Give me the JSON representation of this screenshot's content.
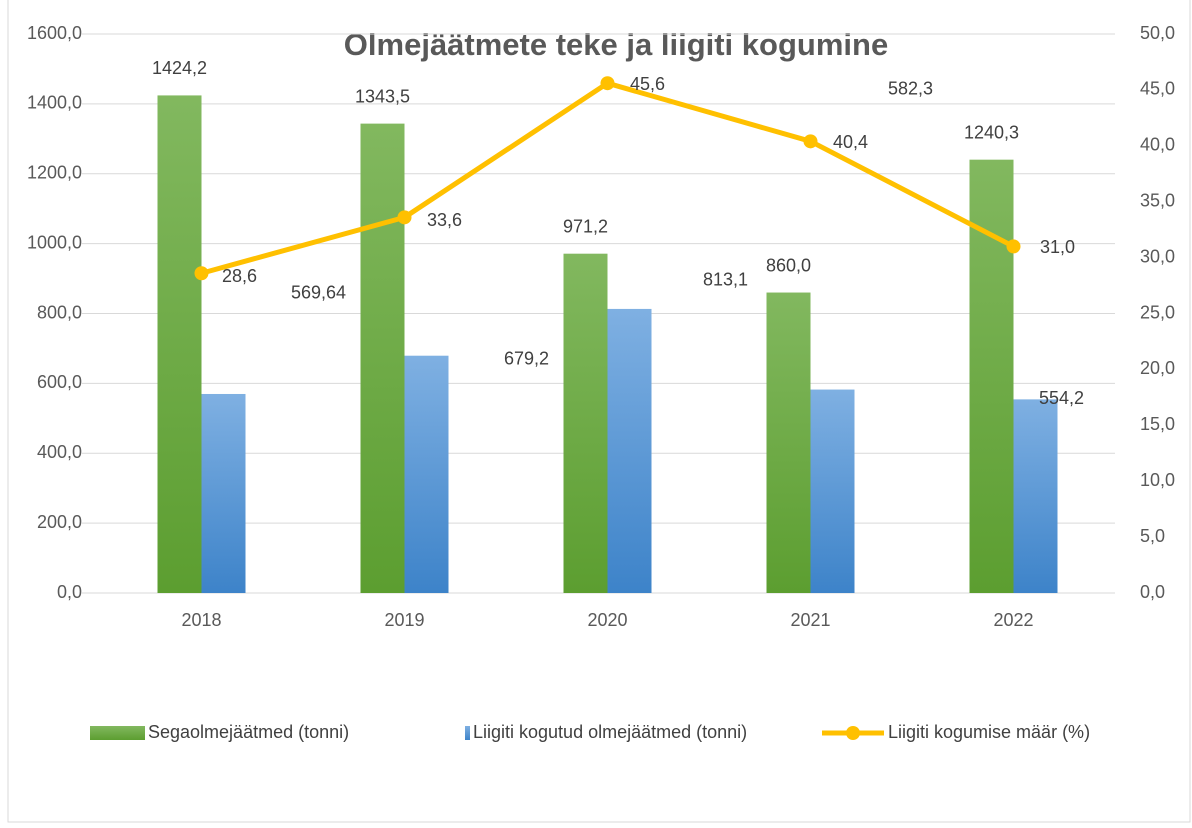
{
  "chart_data": {
    "type": "bar",
    "title": "Olmejäätmete teke ja liigiti kogumine",
    "categories": [
      "2018",
      "2019",
      "2020",
      "2021",
      "2022"
    ],
    "series": [
      {
        "name": "Segaolmejäätmed (tonni)",
        "color": "#6aa83f",
        "values": [
          1424.2,
          1343.5,
          971.2,
          860.0,
          1240.3
        ],
        "value_labels": [
          "1424,2",
          "1343,5",
          "971,2",
          "860,0",
          "1240,3"
        ]
      },
      {
        "name": "Liigiti kogutud olmejäätmed (tonni)",
        "color": "#5b9bd5",
        "values": [
          569.64,
          679.2,
          813.1,
          582.3,
          554.2
        ],
        "value_labels": [
          "569,64",
          "679,2",
          "813,1",
          "582,3",
          "554,2"
        ]
      },
      {
        "name": "Liigiti kogumise määr (%)",
        "type": "line",
        "axis": "y2",
        "color": "#ffc000",
        "values": [
          28.6,
          33.6,
          45.6,
          40.4,
          31.0
        ],
        "value_labels": [
          "28,6",
          "33,6",
          "45,6",
          "40,4",
          "31,0"
        ]
      }
    ],
    "ylim": [
      0,
      1600
    ],
    "yticks": [
      {
        "value": 0,
        "label": "0,0"
      },
      {
        "value": 200,
        "label": "200,0"
      },
      {
        "value": 400,
        "label": "400,0"
      },
      {
        "value": 600,
        "label": "600,0"
      },
      {
        "value": 800,
        "label": "800,0"
      },
      {
        "value": 1000,
        "label": "1000,0"
      },
      {
        "value": 1200,
        "label": "1200,0"
      },
      {
        "value": 1400,
        "label": "1400,0"
      },
      {
        "value": 1600,
        "label": "1600,0"
      }
    ],
    "y2lim": [
      0,
      50
    ],
    "y2ticks": [
      {
        "value": 0,
        "label": "0,0"
      },
      {
        "value": 5,
        "label": "5,0"
      },
      {
        "value": 10,
        "label": "10,0"
      },
      {
        "value": 15,
        "label": "15,0"
      },
      {
        "value": 20,
        "label": "20,0"
      },
      {
        "value": 25,
        "label": "25,0"
      },
      {
        "value": 30,
        "label": "30,0"
      },
      {
        "value": 35,
        "label": "35,0"
      },
      {
        "value": 40,
        "label": "40,0"
      },
      {
        "value": 45,
        "label": "45,0"
      },
      {
        "value": 50,
        "label": "50,0"
      }
    ],
    "grid": true,
    "legend": "bottom"
  }
}
